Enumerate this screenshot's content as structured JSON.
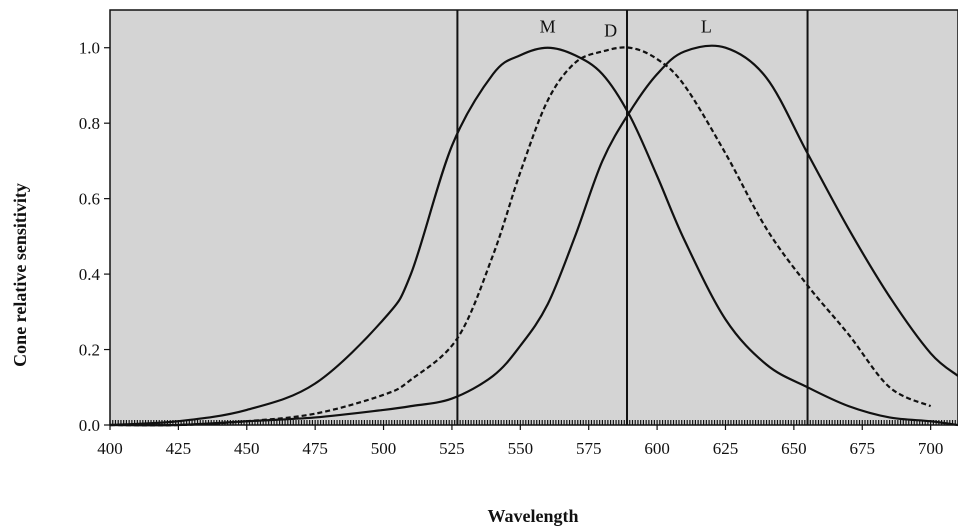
{
  "chart_data": {
    "type": "line",
    "title": "",
    "xlabel": "Wavelength",
    "ylabel": "Cone relative sensitivity",
    "xlim": [
      400,
      710
    ],
    "ylim": [
      0,
      1.1
    ],
    "grid": false,
    "legend": "none",
    "plot_background": "#d4d4d4",
    "x_ticks": [
      "400",
      "425",
      "450",
      "475",
      "500",
      "525",
      "550",
      "575",
      "600",
      "625",
      "650",
      "675",
      "700"
    ],
    "y_ticks": [
      "0.0",
      "0.2",
      "0.4",
      "0.6",
      "0.8",
      "1.0"
    ],
    "series": [
      {
        "name": "M",
        "style": "solid",
        "color": "#111111",
        "x": [
          400,
          425,
          450,
          475,
          500,
          510,
          525,
          540,
          550,
          560,
          570,
          580,
          590,
          600,
          610,
          625,
          640,
          655,
          670,
          685,
          700,
          710
        ],
        "values": [
          0.0,
          0.01,
          0.04,
          0.11,
          0.28,
          0.4,
          0.74,
          0.93,
          0.98,
          1.0,
          0.98,
          0.93,
          0.82,
          0.66,
          0.49,
          0.28,
          0.16,
          0.1,
          0.05,
          0.02,
          0.01,
          0.0
        ]
      },
      {
        "name": "D",
        "style": "dashed",
        "color": "#111111",
        "x": [
          400,
          425,
          450,
          475,
          500,
          510,
          527,
          540,
          550,
          560,
          570,
          580,
          590,
          600,
          610,
          625,
          640,
          655,
          670,
          685,
          700
        ],
        "values": [
          0.0,
          0.0,
          0.01,
          0.03,
          0.08,
          0.12,
          0.23,
          0.45,
          0.67,
          0.86,
          0.96,
          0.99,
          1.0,
          0.97,
          0.9,
          0.72,
          0.52,
          0.37,
          0.24,
          0.1,
          0.05
        ]
      },
      {
        "name": "L",
        "style": "solid",
        "color": "#111111",
        "x": [
          400,
          425,
          450,
          475,
          500,
          510,
          525,
          540,
          550,
          560,
          570,
          580,
          590,
          600,
          610,
          625,
          640,
          655,
          670,
          685,
          700,
          710
        ],
        "values": [
          0.0,
          0.0,
          0.01,
          0.02,
          0.04,
          0.05,
          0.07,
          0.13,
          0.21,
          0.32,
          0.5,
          0.7,
          0.83,
          0.93,
          0.99,
          1.0,
          0.92,
          0.72,
          0.52,
          0.34,
          0.19,
          0.13
        ]
      }
    ],
    "vertical_lines": [
      527,
      589,
      655
    ],
    "curve_labels": [
      {
        "text": "M",
        "x": 560,
        "y": 1.04
      },
      {
        "text": "D",
        "x": 583,
        "y": 1.03
      },
      {
        "text": "L",
        "x": 618,
        "y": 1.04
      }
    ]
  }
}
